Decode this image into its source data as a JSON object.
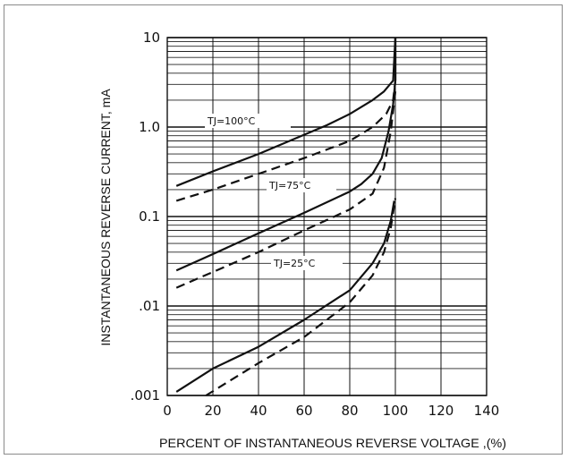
{
  "chart_data": {
    "type": "line",
    "title": "",
    "xlabel": "PERCENT OF INSTANTANEOUS REVERSE VOLTAGE ,(%)",
    "ylabel": "INSTANTANEOUS REVERSE CURRENT, mA",
    "xlim": [
      0,
      140
    ],
    "ylim": [
      0.001,
      10
    ],
    "y_scale": "log",
    "grid": true,
    "x_ticks": [
      0,
      20,
      40,
      60,
      80,
      100,
      120,
      140
    ],
    "x_tick_labels": [
      "0",
      "20",
      "40",
      "60",
      "80",
      "100",
      "120",
      "140"
    ],
    "y_ticks": [
      0.001,
      0.01,
      0.1,
      1.0,
      10
    ],
    "y_tick_labels": [
      ".001",
      ".01",
      "0.1",
      "1.0",
      "10"
    ],
    "series": [
      {
        "name": "TJ=100°C",
        "style": "solid",
        "x": [
          4,
          20,
          40,
          60,
          70,
          80,
          90,
          95,
          99,
          100
        ],
        "y": [
          0.22,
          0.32,
          0.5,
          0.82,
          1.05,
          1.4,
          2.0,
          2.5,
          3.3,
          10
        ]
      },
      {
        "name": "TJ=100°C",
        "style": "dashed",
        "x": [
          4,
          20,
          40,
          60,
          80,
          90,
          96,
          99,
          100
        ],
        "y": [
          0.15,
          0.2,
          0.3,
          0.45,
          0.7,
          1.0,
          1.4,
          2.0,
          3.3
        ]
      },
      {
        "name": "TJ=75°C",
        "style": "solid",
        "x": [
          4,
          20,
          40,
          60,
          80,
          85,
          90,
          94,
          97,
          99,
          100
        ],
        "y": [
          0.025,
          0.038,
          0.065,
          0.11,
          0.19,
          0.23,
          0.3,
          0.45,
          0.9,
          1.8,
          3.3
        ]
      },
      {
        "name": "TJ=75°C",
        "style": "dashed",
        "x": [
          4,
          20,
          40,
          60,
          80,
          90,
          95,
          98,
          100
        ],
        "y": [
          0.016,
          0.024,
          0.04,
          0.07,
          0.12,
          0.18,
          0.35,
          0.9,
          2.5
        ]
      },
      {
        "name": "TJ=25°C",
        "style": "solid",
        "x": [
          4,
          20,
          40,
          60,
          80,
          90,
          95,
          98,
          99.5
        ],
        "y": [
          0.0011,
          0.002,
          0.0035,
          0.007,
          0.015,
          0.03,
          0.05,
          0.09,
          0.15
        ]
      },
      {
        "name": "TJ=25°C",
        "style": "dashed",
        "x": [
          17,
          40,
          60,
          80,
          90,
          95,
          98,
          100
        ],
        "y": [
          0.001,
          0.0023,
          0.0045,
          0.011,
          0.022,
          0.04,
          0.075,
          0.16
        ]
      }
    ],
    "annotations": [
      "TJ=100°C",
      "TJ=75°C",
      "TJ=25°C"
    ]
  }
}
